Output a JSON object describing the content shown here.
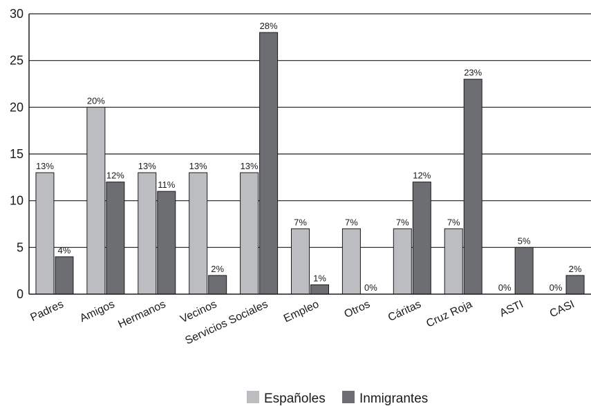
{
  "chart_data": {
    "type": "bar",
    "categories": [
      "Padres",
      "Amigos",
      "Hermanos",
      "Vecinos",
      "Servicios Sociales",
      "Empleo",
      "Otros",
      "Cáritas",
      "Cruz Roja",
      "ASTI",
      "CASI"
    ],
    "series": [
      {
        "name": "Españoles",
        "color": "#bcbdc0",
        "values": [
          13,
          20,
          13,
          13,
          13,
          7,
          7,
          7,
          7,
          0,
          0
        ],
        "labels": [
          "13%",
          "20%",
          "13%",
          "13%",
          "13%",
          "7%",
          "7%",
          "7%",
          "7%",
          "0%",
          "0%"
        ]
      },
      {
        "name": "Inmigrantes",
        "color": "#6d6e72",
        "values": [
          4,
          12,
          11,
          2,
          28,
          1,
          0,
          12,
          23,
          5,
          2
        ],
        "labels": [
          "4%",
          "12%",
          "11%",
          "2%",
          "28%",
          "1%",
          "0%",
          "12%",
          "23%",
          "5%",
          "2%"
        ]
      }
    ],
    "yticks": [
      "0",
      "5",
      "10",
      "15",
      "20",
      "25",
      "30"
    ],
    "ylim": [
      0,
      30
    ],
    "grid": true,
    "legend": "bottom-center"
  }
}
